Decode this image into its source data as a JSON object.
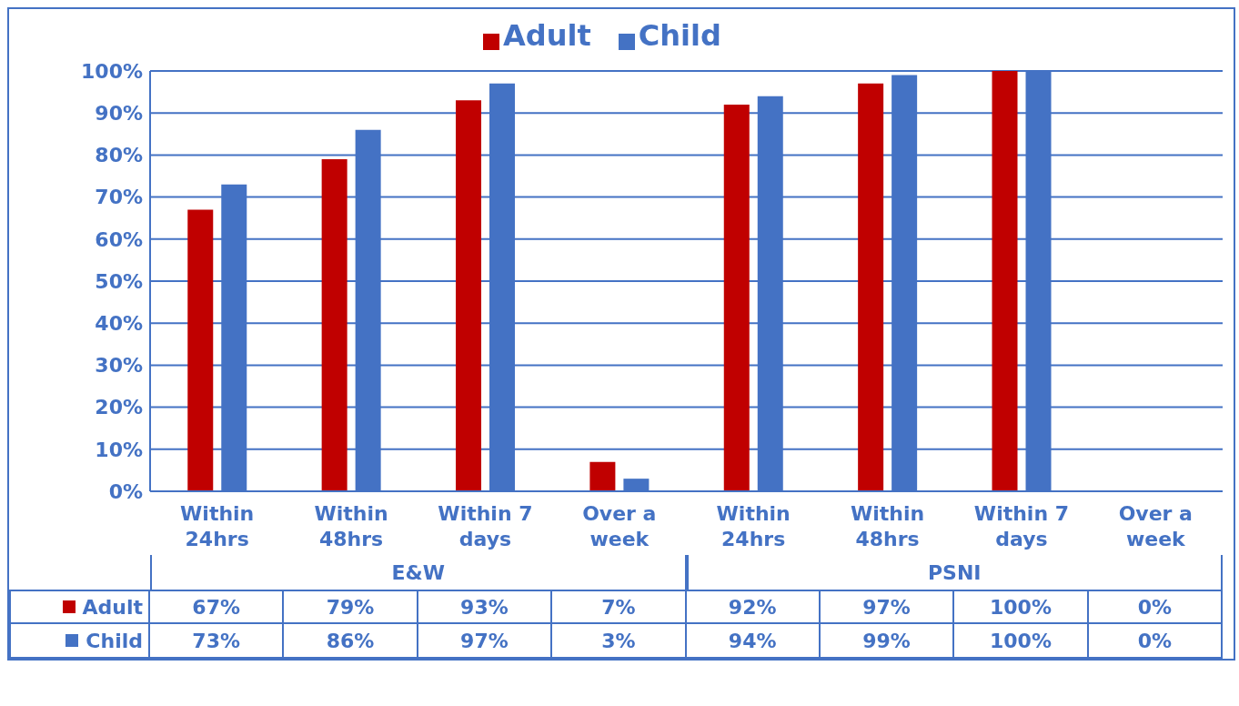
{
  "chart_data": {
    "type": "bar",
    "categories": [
      "Within 24hrs",
      "Within 48hrs",
      "Within 7 days",
      "Over a week",
      "Within 24hrs",
      "Within 48hrs",
      "Within 7 days",
      "Over a week"
    ],
    "series": [
      {
        "name": "Adult",
        "color": "#c00000",
        "values": [
          67,
          79,
          93,
          7,
          92,
          97,
          100,
          0
        ],
        "value_labels": [
          "67%",
          "79%",
          "93%",
          "7%",
          "92%",
          "97%",
          "100%",
          "0%"
        ]
      },
      {
        "name": "Child",
        "color": "#4472c4",
        "values": [
          73,
          86,
          97,
          3,
          94,
          99,
          100,
          0
        ],
        "value_labels": [
          "73%",
          "86%",
          "97%",
          "3%",
          "94%",
          "99%",
          "100%",
          "0%"
        ]
      }
    ],
    "ylim": [
      0,
      100
    ],
    "yticks": [
      {
        "value": 0,
        "label": "0%"
      },
      {
        "value": 10,
        "label": "10%"
      },
      {
        "value": 20,
        "label": "20%"
      },
      {
        "value": 30,
        "label": "30%"
      },
      {
        "value": 40,
        "label": "40%"
      },
      {
        "value": 50,
        "label": "50%"
      },
      {
        "value": 60,
        "label": "60%"
      },
      {
        "value": 70,
        "label": "70%"
      },
      {
        "value": 80,
        "label": "80%"
      },
      {
        "value": 90,
        "label": "90%"
      },
      {
        "value": 100,
        "label": "100%"
      }
    ],
    "grid": "y",
    "legend": "top",
    "annotations": [
      "E&W",
      "PSNI"
    ]
  }
}
